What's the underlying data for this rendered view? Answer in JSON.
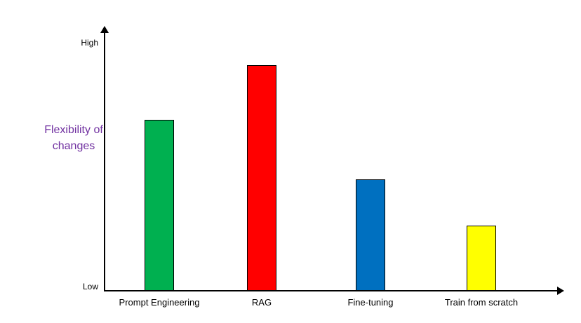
{
  "chart_data": {
    "type": "bar",
    "categories": [
      "Prompt Engineering",
      "RAG",
      "Fine-tuning",
      "Train from scratch"
    ],
    "values": [
      66,
      87,
      43,
      25
    ],
    "colors": [
      "#00B050",
      "#FF0000",
      "#0070C0",
      "#FFFF00"
    ],
    "title": "",
    "xlabel": "",
    "ylabel": "Flexibility of changes",
    "yticks": [
      "High",
      "Low"
    ],
    "ylim": [
      0,
      100
    ],
    "grid": false,
    "legend": "none",
    "ylabel_color": "#7030A0",
    "bar_border_color": "#000000"
  }
}
